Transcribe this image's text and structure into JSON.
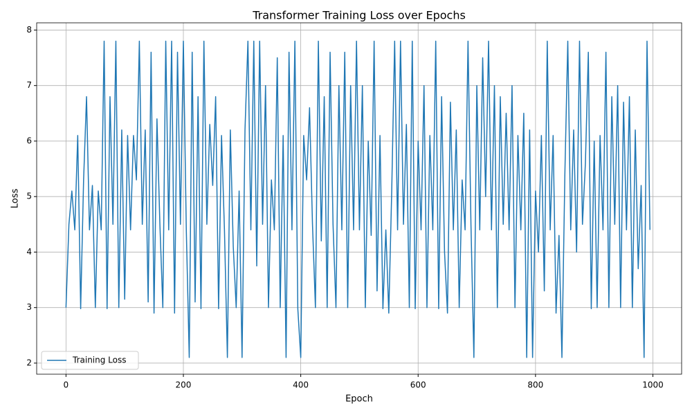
{
  "chart_data": {
    "type": "line",
    "title": "Transformer Training Loss over Epochs",
    "xlabel": "Epoch",
    "ylabel": "Loss",
    "x": [
      0,
      5,
      10,
      15,
      20,
      25,
      30,
      35,
      40,
      45,
      50,
      55,
      60,
      65,
      70,
      75,
      80,
      85,
      90,
      95,
      100,
      105,
      110,
      115,
      120,
      125,
      130,
      135,
      140,
      145,
      150,
      155,
      160,
      165,
      170,
      175,
      180,
      185,
      190,
      195,
      200,
      205,
      210,
      215,
      220,
      225,
      230,
      235,
      240,
      245,
      250,
      255,
      260,
      265,
      270,
      275,
      280,
      285,
      290,
      295,
      300,
      305,
      310,
      315,
      320,
      325,
      330,
      335,
      340,
      345,
      350,
      355,
      360,
      365,
      370,
      375,
      380,
      385,
      390,
      395,
      400,
      405,
      410,
      415,
      420,
      425,
      430,
      435,
      440,
      445,
      450,
      455,
      460,
      465,
      470,
      475,
      480,
      485,
      490,
      495,
      500,
      505,
      510,
      515,
      520,
      525,
      530,
      535,
      540,
      545,
      550,
      555,
      560,
      565,
      570,
      575,
      580,
      585,
      590,
      595,
      600,
      605,
      610,
      615,
      620,
      625,
      630,
      635,
      640,
      645,
      650,
      655,
      660,
      665,
      670,
      675,
      680,
      685,
      690,
      695,
      700,
      705,
      710,
      715,
      720,
      725,
      730,
      735,
      740,
      745,
      750,
      755,
      760,
      765,
      770,
      775,
      780,
      785,
      790,
      795,
      800,
      805,
      810,
      815,
      820,
      825,
      830,
      835,
      840,
      845,
      850,
      855,
      860,
      865,
      870,
      875,
      880,
      885,
      890,
      895,
      900,
      905,
      910,
      915,
      920,
      925,
      930,
      935,
      940,
      945,
      950,
      955,
      960,
      965,
      970,
      975,
      980,
      985,
      990,
      995
    ],
    "series": [
      {
        "name": "Training Loss",
        "color": "#1f77b4",
        "values": [
          3.0,
          4.5,
          5.1,
          4.4,
          6.1,
          2.98,
          5.3,
          6.8,
          4.4,
          5.2,
          3.0,
          5.1,
          4.4,
          7.8,
          2.98,
          6.8,
          4.5,
          7.8,
          3.0,
          6.2,
          3.15,
          6.1,
          4.4,
          6.1,
          5.3,
          7.8,
          4.5,
          6.2,
          3.1,
          7.6,
          2.9,
          6.4,
          4.5,
          3.0,
          7.8,
          4.4,
          7.8,
          2.9,
          7.6,
          4.5,
          7.8,
          4.4,
          2.1,
          7.6,
          3.1,
          6.8,
          2.98,
          7.8,
          4.5,
          6.3,
          5.2,
          6.8,
          2.98,
          6.1,
          4.4,
          2.1,
          6.2,
          4.1,
          3.0,
          5.1,
          2.1,
          6.2,
          7.8,
          4.4,
          7.8,
          3.75,
          7.8,
          4.5,
          7.0,
          3.0,
          5.3,
          4.4,
          7.5,
          3.0,
          6.1,
          2.1,
          7.6,
          4.4,
          7.8,
          2.98,
          2.1,
          6.1,
          5.3,
          6.6,
          4.5,
          3.0,
          7.8,
          4.2,
          6.8,
          3.0,
          7.6,
          4.5,
          3.0,
          7.0,
          4.4,
          7.6,
          3.0,
          7.0,
          4.4,
          7.8,
          4.4,
          7.0,
          3.0,
          6.0,
          4.3,
          7.8,
          3.3,
          6.1,
          2.98,
          4.4,
          2.9,
          5.1,
          7.8,
          4.4,
          7.8,
          4.5,
          6.3,
          3.0,
          7.8,
          2.98,
          6.0,
          4.4,
          7.0,
          3.0,
          6.1,
          4.4,
          7.8,
          2.98,
          6.8,
          4.0,
          2.9,
          6.7,
          4.4,
          6.2,
          3.0,
          5.3,
          4.4,
          7.8,
          4.5,
          2.1,
          7.0,
          4.4,
          7.5,
          5.0,
          7.8,
          4.4,
          7.0,
          3.0,
          6.8,
          4.5,
          6.5,
          4.4,
          7.0,
          3.0,
          6.1,
          4.4,
          6.5,
          2.1,
          6.2,
          2.1,
          5.1,
          4.0,
          6.1,
          3.3,
          7.8,
          4.4,
          6.1,
          2.9,
          4.3,
          2.1,
          5.4,
          7.8,
          4.4,
          6.2,
          4.0,
          7.8,
          4.5,
          5.6,
          7.6,
          2.98,
          6.0,
          3.0,
          6.1,
          4.4,
          7.6,
          3.0,
          6.8,
          4.5,
          7.0,
          3.0,
          6.7,
          4.4,
          6.8,
          3.0,
          6.2,
          3.7,
          5.2,
          2.1,
          7.8,
          4.4
        ]
      }
    ],
    "xlim": [
      -49.95,
      1048.95
    ],
    "ylim": [
      1.8,
      8.13
    ],
    "xticks": [
      0,
      200,
      400,
      600,
      800,
      1000
    ],
    "yticks": [
      2,
      3,
      4,
      5,
      6,
      7,
      8
    ],
    "grid": true,
    "legend": "lower left"
  }
}
